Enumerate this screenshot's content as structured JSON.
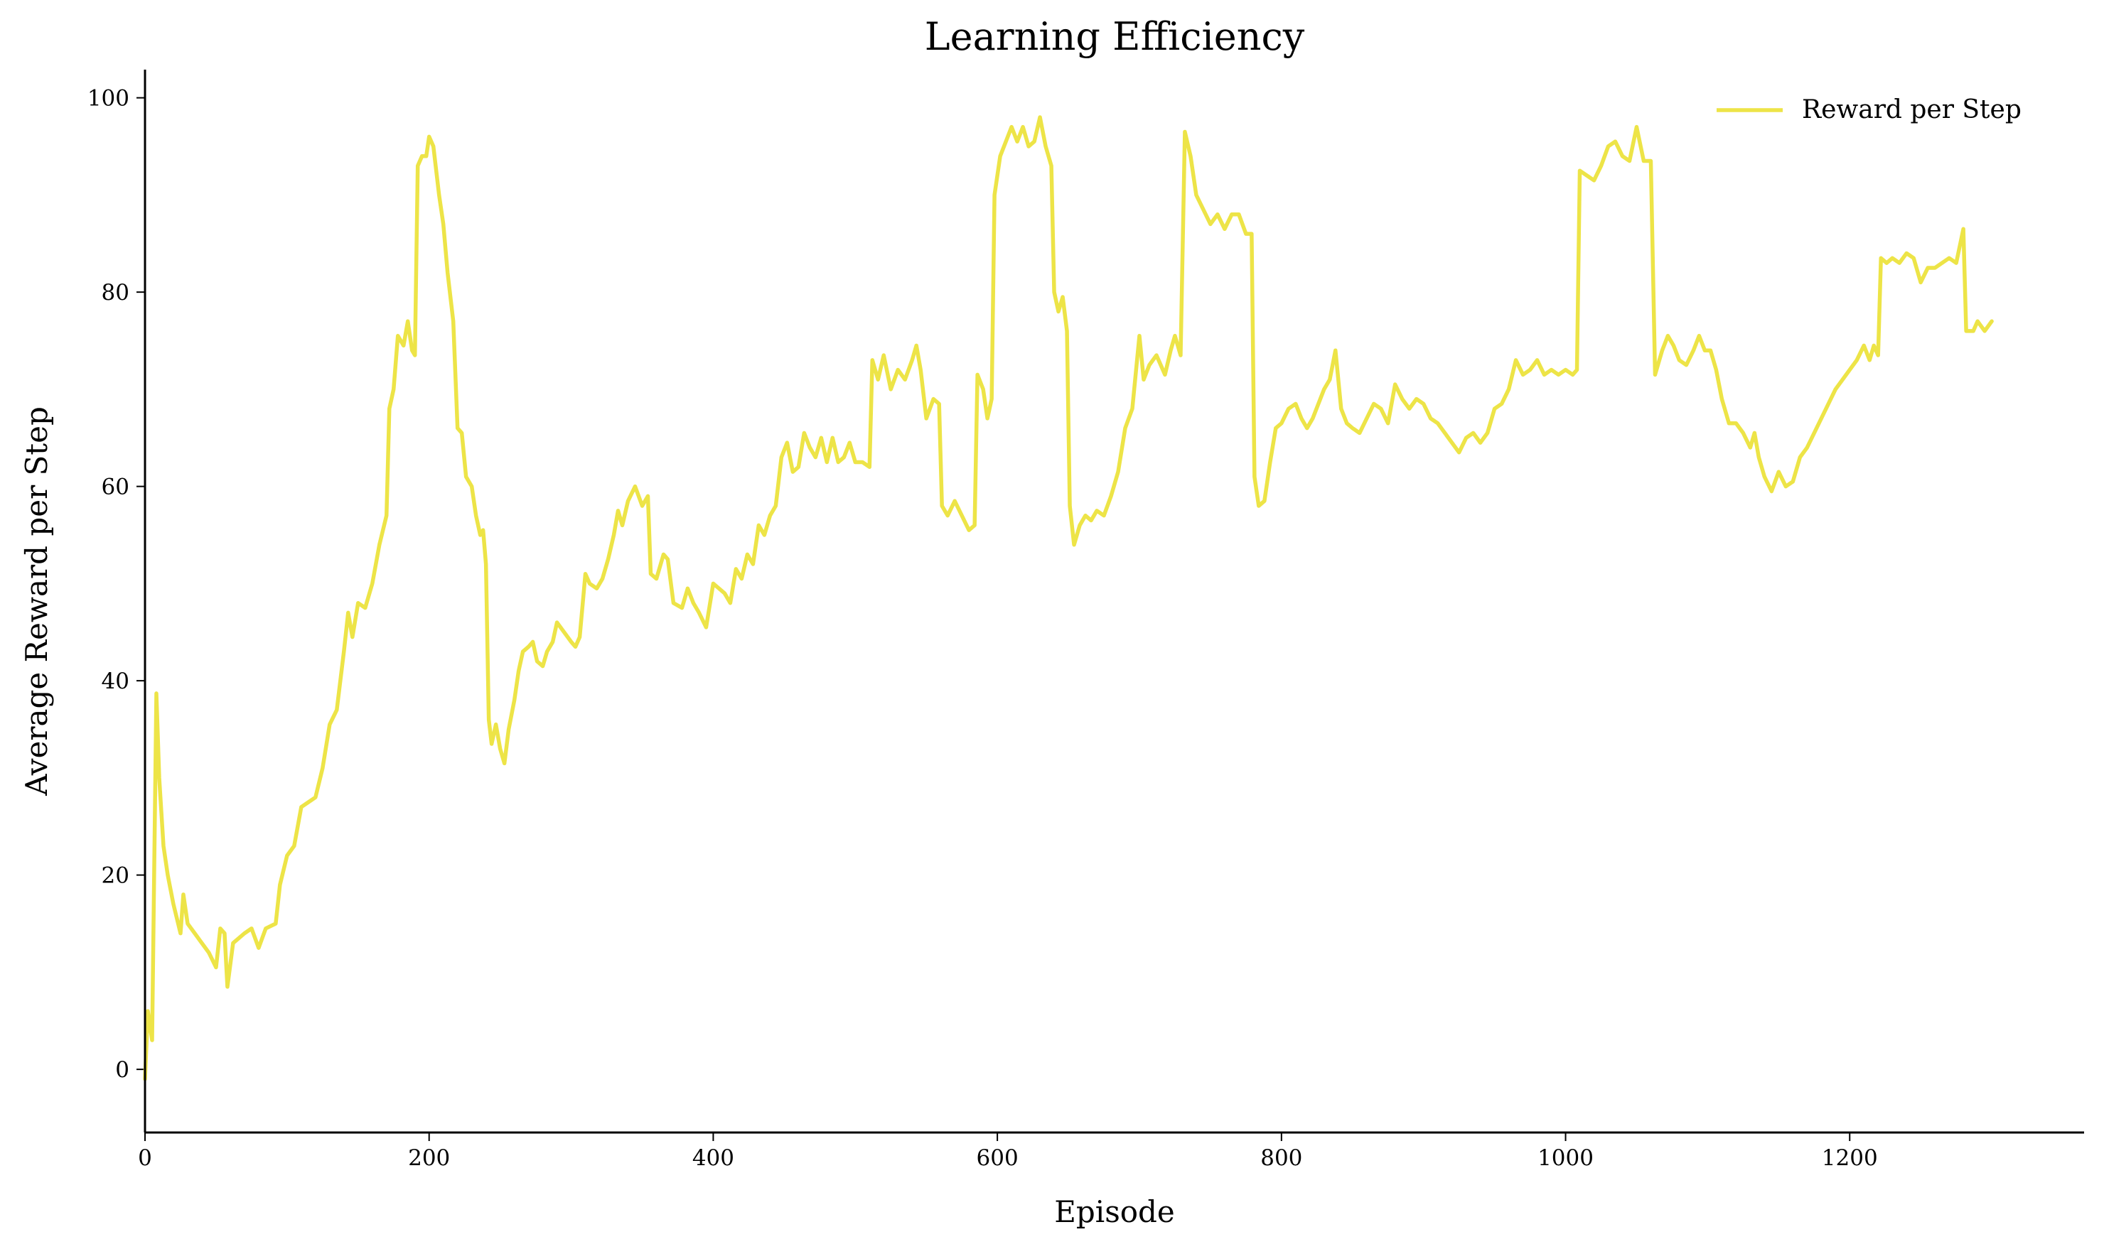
{
  "chart_data": {
    "type": "line",
    "title": "Learning Efficiency",
    "x_label": "Episode",
    "y_label": "Average Reward per Step",
    "xlim": [
      0,
      1365
    ],
    "ylim": [
      -6.5,
      102.9
    ],
    "xticks": [
      0,
      200,
      400,
      600,
      800,
      1000,
      1200
    ],
    "yticks": [
      0,
      20,
      40,
      60,
      80,
      100
    ],
    "legend": "upper right",
    "x": [
      0,
      2,
      5,
      8,
      10,
      13,
      16,
      20,
      25,
      27,
      30,
      35,
      40,
      45,
      50,
      53,
      56,
      58,
      62,
      70,
      75,
      80,
      85,
      92,
      95,
      100,
      105,
      110,
      115,
      120,
      125,
      130,
      135,
      140,
      143,
      146,
      150,
      155,
      160,
      165,
      170,
      172,
      175,
      178,
      182,
      185,
      188,
      190,
      192,
      195,
      198,
      200,
      203,
      207,
      210,
      213,
      217,
      220,
      223,
      226,
      230,
      233,
      236,
      238,
      240,
      242,
      244,
      247,
      250,
      253,
      256,
      260,
      263,
      266,
      270,
      273,
      276,
      280,
      283,
      287,
      290,
      295,
      300,
      303,
      306,
      310,
      313,
      318,
      322,
      326,
      330,
      333,
      336,
      340,
      345,
      350,
      354,
      356,
      360,
      365,
      368,
      372,
      378,
      382,
      386,
      390,
      395,
      400,
      404,
      408,
      412,
      416,
      420,
      424,
      428,
      432,
      436,
      440,
      444,
      448,
      452,
      456,
      460,
      464,
      468,
      472,
      476,
      480,
      484,
      488,
      492,
      496,
      500,
      505,
      510,
      512,
      516,
      520,
      525,
      530,
      535,
      540,
      543,
      546,
      550,
      555,
      559,
      561,
      565,
      570,
      575,
      580,
      584,
      586,
      590,
      593,
      596,
      598,
      602,
      606,
      610,
      614,
      618,
      622,
      626,
      630,
      634,
      638,
      640,
      643,
      646,
      649,
      651,
      654,
      658,
      662,
      666,
      670,
      675,
      680,
      685,
      690,
      695,
      700,
      703,
      707,
      712,
      718,
      722,
      725,
      729,
      732,
      736,
      740,
      745,
      750,
      755,
      760,
      765,
      770,
      775,
      779,
      781,
      784,
      788,
      792,
      796,
      800,
      805,
      810,
      814,
      818,
      822,
      826,
      830,
      834,
      838,
      842,
      846,
      850,
      855,
      860,
      865,
      870,
      875,
      880,
      885,
      890,
      895,
      900,
      905,
      910,
      915,
      920,
      925,
      930,
      935,
      940,
      945,
      950,
      955,
      960,
      965,
      970,
      975,
      980,
      985,
      990,
      995,
      1000,
      1005,
      1008,
      1010,
      1015,
      1020,
      1025,
      1030,
      1035,
      1040,
      1045,
      1050,
      1055,
      1060,
      1063,
      1068,
      1072,
      1076,
      1080,
      1085,
      1090,
      1094,
      1098,
      1102,
      1106,
      1110,
      1115,
      1120,
      1125,
      1130,
      1133,
      1136,
      1140,
      1145,
      1150,
      1155,
      1160,
      1165,
      1170,
      1175,
      1180,
      1185,
      1190,
      1195,
      1200,
      1205,
      1210,
      1214,
      1217,
      1220,
      1222,
      1226,
      1230,
      1235,
      1240,
      1245,
      1250,
      1255,
      1260,
      1265,
      1270,
      1275,
      1280,
      1282,
      1287,
      1290,
      1295,
      1300
    ],
    "series": [
      {
        "name": "Reward per Step",
        "color": "#ede447",
        "values": [
          -1,
          6,
          3,
          38.7,
          30,
          23,
          20,
          17,
          14,
          18,
          15,
          14,
          13,
          12,
          10.5,
          14.5,
          14,
          8.5,
          13,
          14,
          14.5,
          12.5,
          14.5,
          15,
          19,
          22,
          23,
          27,
          27.5,
          28,
          31,
          35.5,
          37,
          43,
          47,
          44.5,
          48,
          47.5,
          50,
          54,
          57,
          68,
          70,
          75.5,
          74.5,
          77,
          74,
          73.5,
          93,
          94,
          94,
          96,
          95,
          90,
          87,
          82,
          77,
          66,
          65.5,
          61,
          60,
          57,
          55,
          55.5,
          52,
          36,
          33.5,
          35.5,
          33,
          31.5,
          35,
          38,
          41,
          43,
          43.5,
          44,
          42,
          41.5,
          43,
          44,
          46,
          45,
          44,
          43.5,
          44.5,
          51,
          50,
          49.5,
          50.5,
          52.5,
          55,
          57.5,
          56,
          58.5,
          60,
          58,
          59,
          51,
          50.5,
          53,
          52.5,
          48,
          47.5,
          49.5,
          48,
          47,
          45.5,
          50,
          49.5,
          49,
          48,
          51.5,
          50.5,
          53,
          52,
          56,
          55,
          57,
          58,
          63,
          64.5,
          61.5,
          62,
          65.5,
          64,
          63,
          65,
          62.5,
          65,
          62.5,
          63,
          64.5,
          62.5,
          62.5,
          62,
          73,
          71,
          73.5,
          70,
          72,
          71,
          73,
          74.5,
          72,
          67,
          69,
          68.5,
          58,
          57,
          58.5,
          57,
          55.5,
          56,
          71.5,
          70,
          67,
          69,
          90,
          94,
          95.5,
          97,
          95.5,
          97,
          95,
          95.5,
          98,
          95,
          93,
          80,
          78,
          79.5,
          76,
          58,
          54,
          56,
          57,
          56.5,
          57.5,
          57,
          59,
          61.5,
          66,
          68,
          75.5,
          71,
          72.5,
          73.5,
          71.5,
          74,
          75.5,
          73.5,
          96.5,
          94,
          90,
          88.5,
          87,
          88,
          86.5,
          88,
          88,
          86,
          86,
          61,
          58,
          58.5,
          62.5,
          66,
          66.5,
          68,
          68.5,
          67,
          66,
          67,
          68.5,
          70,
          71,
          74,
          68,
          66.5,
          66,
          65.5,
          67,
          68.5,
          68,
          66.5,
          70.5,
          69,
          68,
          69,
          68.5,
          67,
          66.5,
          65.5,
          64.5,
          63.5,
          65,
          65.5,
          64.5,
          65.5,
          68,
          68.5,
          70,
          73,
          71.5,
          72,
          73,
          71.5,
          72,
          71.5,
          72,
          71.5,
          72,
          92.5,
          92,
          91.5,
          93,
          95,
          95.5,
          94,
          93.5,
          97,
          93.5,
          93.5,
          71.5,
          74,
          75.5,
          74.5,
          73,
          72.5,
          74,
          75.5,
          74,
          74,
          72,
          69,
          66.5,
          66.5,
          65.5,
          64,
          65.5,
          63,
          61,
          59.5,
          61.5,
          60,
          60.5,
          63,
          64,
          65.5,
          67,
          68.5,
          70,
          71,
          72,
          73,
          74.5,
          73,
          74.5,
          73.5,
          83.5,
          83,
          83.5,
          83,
          84,
          83.5,
          81,
          82.5,
          82.5,
          83,
          83.5,
          83,
          86.5,
          76,
          76,
          77,
          76,
          77
        ]
      }
    ]
  }
}
